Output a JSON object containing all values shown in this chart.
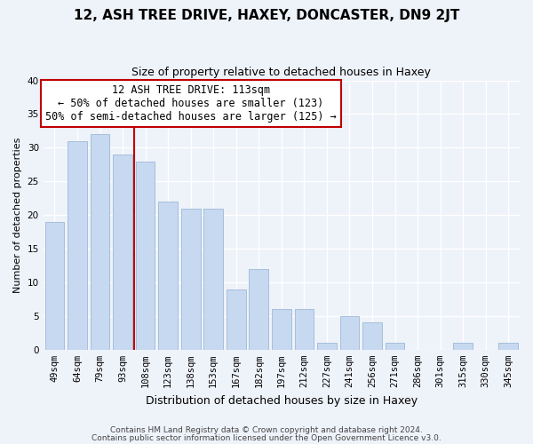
{
  "title1": "12, ASH TREE DRIVE, HAXEY, DONCASTER, DN9 2JT",
  "title2": "Size of property relative to detached houses in Haxey",
  "xlabel": "Distribution of detached houses by size in Haxey",
  "ylabel": "Number of detached properties",
  "footer1": "Contains HM Land Registry data © Crown copyright and database right 2024.",
  "footer2": "Contains public sector information licensed under the Open Government Licence v3.0.",
  "bar_labels": [
    "49sqm",
    "64sqm",
    "79sqm",
    "93sqm",
    "108sqm",
    "123sqm",
    "138sqm",
    "153sqm",
    "167sqm",
    "182sqm",
    "197sqm",
    "212sqm",
    "227sqm",
    "241sqm",
    "256sqm",
    "271sqm",
    "286sqm",
    "301sqm",
    "315sqm",
    "330sqm",
    "345sqm"
  ],
  "bar_values": [
    19,
    31,
    32,
    29,
    28,
    22,
    21,
    21,
    9,
    12,
    6,
    6,
    1,
    5,
    4,
    1,
    0,
    0,
    1,
    0,
    1
  ],
  "bar_color": "#c6d9f0",
  "bar_edge_color": "#9db8d8",
  "vline_x": 3.5,
  "vline_color": "#c00000",
  "annotation_title": "12 ASH TREE DRIVE: 113sqm",
  "annotation_line1": "← 50% of detached houses are smaller (123)",
  "annotation_line2": "50% of semi-detached houses are larger (125) →",
  "annotation_box_color": "#ffffff",
  "annotation_box_edge": "#c00000",
  "ylim": [
    0,
    40
  ],
  "yticks": [
    0,
    5,
    10,
    15,
    20,
    25,
    30,
    35,
    40
  ],
  "bg_color": "#eef2f9",
  "grid_color": "#ffffff",
  "title1_fontsize": 11,
  "title2_fontsize": 9,
  "ylabel_fontsize": 8,
  "xlabel_fontsize": 9,
  "tick_fontsize": 7.5,
  "footer_fontsize": 6.5,
  "ann_fontsize": 8.5
}
